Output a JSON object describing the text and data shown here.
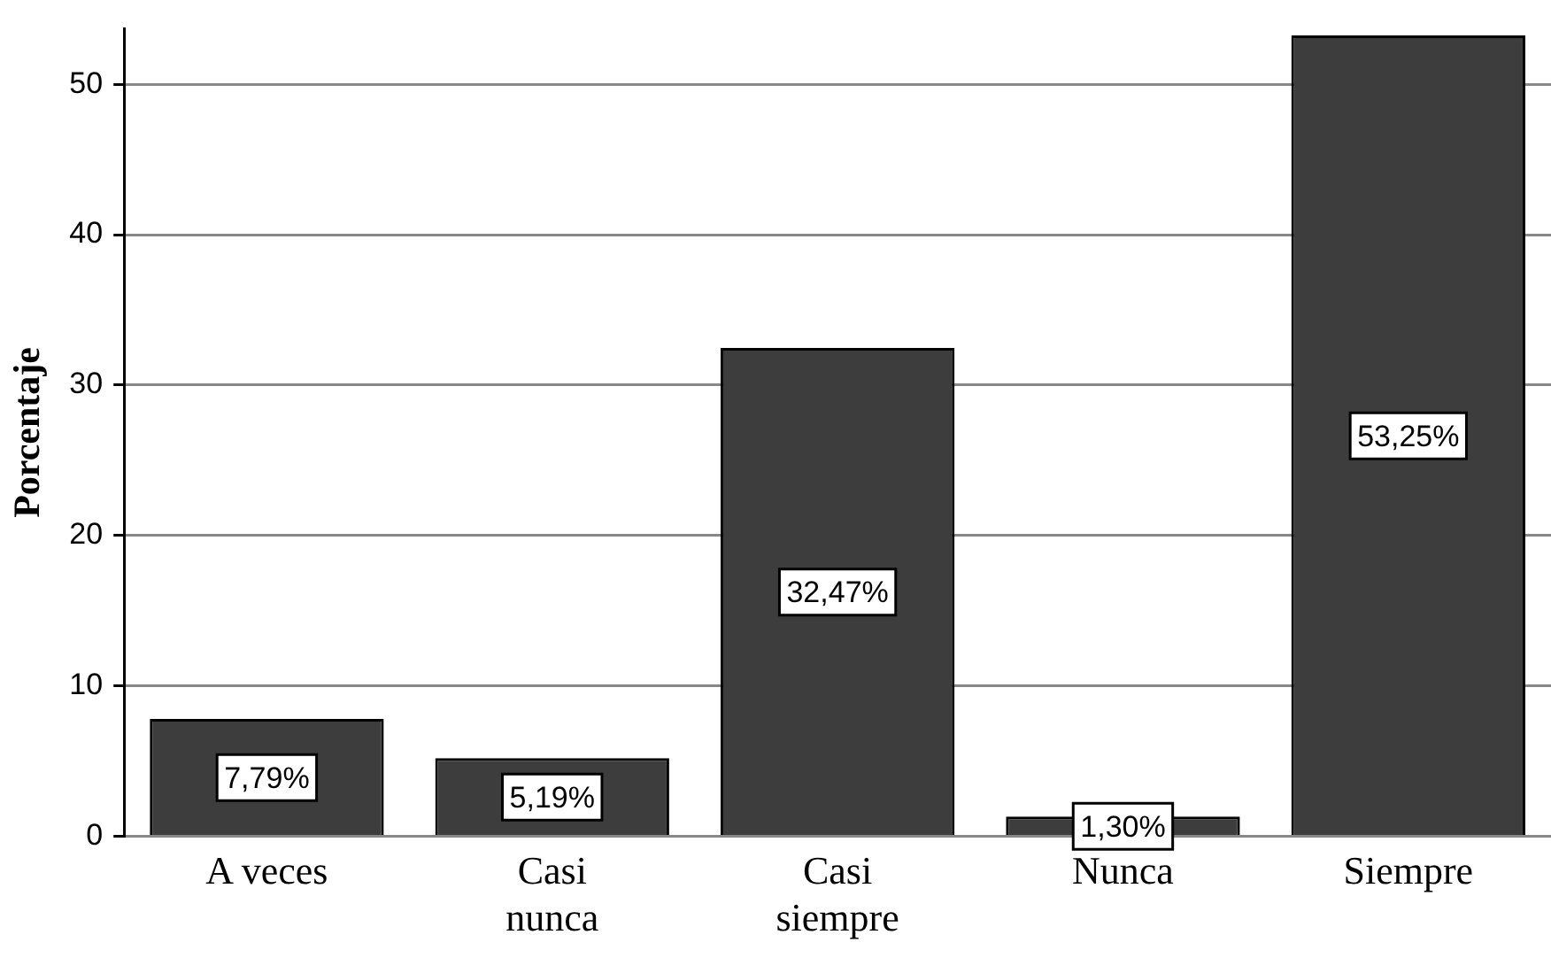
{
  "chart_data": {
    "type": "bar",
    "ylabel": "Porcentaje",
    "categories": [
      "A veces",
      "Casi nunca",
      "Casi siempre",
      "Nunca",
      "Siempre"
    ],
    "values": [
      7.79,
      5.19,
      32.47,
      1.3,
      53.25
    ],
    "value_labels": [
      "7,79%",
      "5,19%",
      "32,47%",
      "1,30%",
      "53,25%"
    ],
    "color": "#3d3d3d",
    "ylim": [
      0,
      53.7
    ],
    "yticks": [
      0,
      10,
      20,
      30,
      40,
      50
    ],
    "grid": "y",
    "legend": false
  }
}
